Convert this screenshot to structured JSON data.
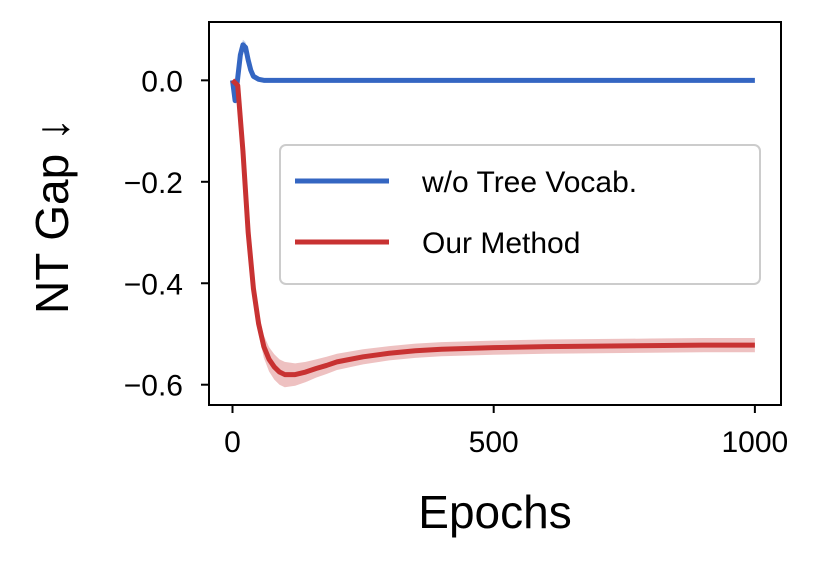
{
  "chart_data": {
    "type": "line",
    "title": "",
    "xlabel": "Epochs",
    "ylabel": "NT Gap ↓",
    "xlim": [
      -45,
      1050
    ],
    "ylim": [
      -0.64,
      0.115
    ],
    "xticks": [
      0,
      500,
      1000
    ],
    "xtick_labels": [
      "0",
      "500",
      "1000"
    ],
    "yticks": [
      0.0,
      -0.2,
      -0.4,
      -0.6
    ],
    "ytick_labels": [
      "0.0",
      "−0.2",
      "−0.4",
      "−0.6"
    ],
    "grid": false,
    "legend_position": "center-right",
    "series": [
      {
        "name": "w/o Tree Vocab.",
        "color": "#3466c2",
        "x": [
          0,
          5,
          10,
          15,
          20,
          25,
          30,
          35,
          40,
          50,
          60,
          80,
          100,
          150,
          200,
          300,
          500,
          700,
          1000
        ],
        "y": [
          0.0,
          -0.04,
          0.005,
          0.05,
          0.07,
          0.065,
          0.04,
          0.02,
          0.008,
          0.002,
          0.0,
          0.0,
          0.0,
          0.0,
          0.0,
          0.0,
          0.0,
          0.0,
          0.0
        ],
        "band": [
          0.0,
          0.008,
          0.008,
          0.012,
          0.01,
          0.01,
          0.008,
          0.005,
          0.003,
          0.002,
          0.001,
          0.0,
          0.0,
          0.0,
          0.0,
          0.0,
          0.0,
          0.0,
          0.0
        ]
      },
      {
        "name": "Our Method",
        "color": "#c83232",
        "x": [
          0,
          10,
          20,
          30,
          40,
          50,
          60,
          70,
          80,
          90,
          100,
          120,
          140,
          160,
          180,
          200,
          250,
          300,
          350,
          400,
          500,
          600,
          700,
          800,
          900,
          1000
        ],
        "y": [
          0.0,
          -0.01,
          -0.14,
          -0.3,
          -0.41,
          -0.48,
          -0.525,
          -0.55,
          -0.565,
          -0.575,
          -0.58,
          -0.58,
          -0.575,
          -0.568,
          -0.562,
          -0.555,
          -0.545,
          -0.538,
          -0.533,
          -0.53,
          -0.527,
          -0.525,
          -0.524,
          -0.523,
          -0.522,
          -0.522
        ],
        "band": [
          0.0,
          0.005,
          0.008,
          0.012,
          0.015,
          0.02,
          0.022,
          0.024,
          0.025,
          0.025,
          0.025,
          0.022,
          0.02,
          0.018,
          0.017,
          0.016,
          0.015,
          0.014,
          0.014,
          0.014,
          0.014,
          0.014,
          0.014,
          0.014,
          0.014,
          0.014
        ]
      }
    ]
  }
}
